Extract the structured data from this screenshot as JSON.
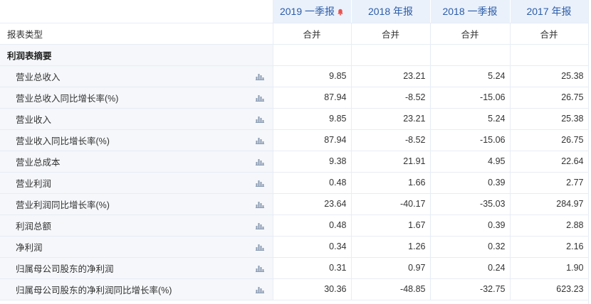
{
  "header": {
    "columns": [
      "2019 一季报",
      "2018 年报",
      "2018 一季报",
      "2017 年报"
    ],
    "alert_color": "#e8534f"
  },
  "type_row": {
    "label": "报表类型",
    "values": [
      "合并",
      "合并",
      "合并",
      "合并"
    ]
  },
  "section": {
    "title": "利润表摘要"
  },
  "rows": [
    {
      "label": "营业总收入",
      "values": [
        "9.85",
        "23.21",
        "5.24",
        "25.38"
      ]
    },
    {
      "label": "营业总收入同比增长率(%)",
      "values": [
        "87.94",
        "-8.52",
        "-15.06",
        "26.75"
      ]
    },
    {
      "label": "营业收入",
      "values": [
        "9.85",
        "23.21",
        "5.24",
        "25.38"
      ]
    },
    {
      "label": "营业收入同比增长率(%)",
      "values": [
        "87.94",
        "-8.52",
        "-15.06",
        "26.75"
      ]
    },
    {
      "label": "营业总成本",
      "values": [
        "9.38",
        "21.91",
        "4.95",
        "22.64"
      ]
    },
    {
      "label": "营业利润",
      "values": [
        "0.48",
        "1.66",
        "0.39",
        "2.77"
      ]
    },
    {
      "label": "营业利润同比增长率(%)",
      "values": [
        "23.64",
        "-40.17",
        "-35.03",
        "284.97"
      ]
    },
    {
      "label": "利润总额",
      "values": [
        "0.48",
        "1.67",
        "0.39",
        "2.88"
      ]
    },
    {
      "label": "净利润",
      "values": [
        "0.34",
        "1.26",
        "0.32",
        "2.16"
      ]
    },
    {
      "label": "归属母公司股东的净利润",
      "values": [
        "0.31",
        "0.97",
        "0.24",
        "1.90"
      ]
    },
    {
      "label": "归属母公司股东的净利润同比增长率(%)",
      "values": [
        "30.36",
        "-48.85",
        "-32.75",
        "623.23"
      ]
    }
  ],
  "icons": {
    "row_chart": "bar-chart-icon",
    "header_alert": "bell-icon"
  }
}
